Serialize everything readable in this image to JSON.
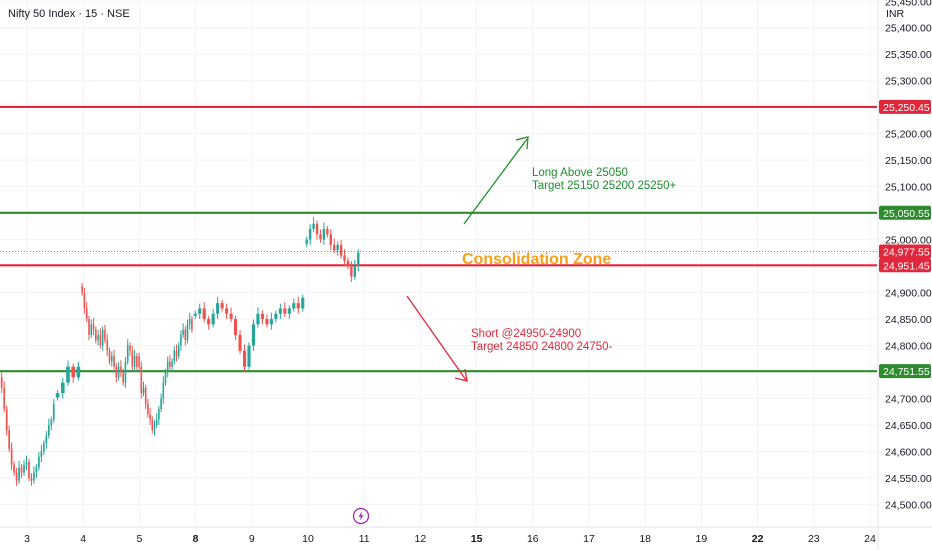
{
  "header": {
    "title": "Nifty 50 Index · 15 · NSE",
    "currency": "INR"
  },
  "chart_data": {
    "type": "candlestick",
    "ylim": [
      24480,
      25475
    ],
    "y_ticks": [
      {
        "value": 25450,
        "label": "25,450.00"
      },
      {
        "value": 25400,
        "label": "25,400.00"
      },
      {
        "value": 25350,
        "label": "25,350.00"
      },
      {
        "value": 25300,
        "label": "25,300.00"
      },
      {
        "value": 25200,
        "label": "25,200.00"
      },
      {
        "value": 25150,
        "label": "25,150.00"
      },
      {
        "value": 25100,
        "label": "25,100.00"
      },
      {
        "value": 25000,
        "label": "25,000.00"
      },
      {
        "value": 24900,
        "label": "24,900.00"
      },
      {
        "value": 24850,
        "label": "24,850.00"
      },
      {
        "value": 24800,
        "label": "24,800.00"
      },
      {
        "value": 24700,
        "label": "24,700.00"
      },
      {
        "value": 24650,
        "label": "24,650.00"
      },
      {
        "value": 24600,
        "label": "24,600.00"
      },
      {
        "value": 24550,
        "label": "24,550.00"
      },
      {
        "value": 24500,
        "label": "24,500.00"
      }
    ],
    "x_ticks": [
      {
        "label": "3",
        "bold": false
      },
      {
        "label": "4",
        "bold": false
      },
      {
        "label": "5",
        "bold": false
      },
      {
        "label": "8",
        "bold": true
      },
      {
        "label": "9",
        "bold": false
      },
      {
        "label": "10",
        "bold": false
      },
      {
        "label": "11",
        "bold": false
      },
      {
        "label": "12",
        "bold": false
      },
      {
        "label": "15",
        "bold": true
      },
      {
        "label": "16",
        "bold": false
      },
      {
        "label": "17",
        "bold": false
      },
      {
        "label": "18",
        "bold": false
      },
      {
        "label": "19",
        "bold": false
      },
      {
        "label": "22",
        "bold": true
      },
      {
        "label": "23",
        "bold": false
      },
      {
        "label": "24",
        "bold": false
      }
    ],
    "levels": [
      {
        "value": 25250.45,
        "label": "25,250.45",
        "color": "#e0283c"
      },
      {
        "value": 25050.55,
        "label": "25,050.55",
        "color": "#2e8b2e"
      },
      {
        "value": 24977.55,
        "label": "24,977.55",
        "color": "#e0283c",
        "kind": "current"
      },
      {
        "value": 24951.45,
        "label": "24,951.45",
        "color": "#e0283c"
      },
      {
        "value": 24751.55,
        "label": "24,751.55",
        "color": "#2e8b2e"
      }
    ],
    "annotations": {
      "long_line1": "Long Above 25050",
      "long_line2": "Target 25150 25200 25250+",
      "short_line1": "Short @24950-24900",
      "short_line2": "Target 24850 24800 24750-",
      "zone": "Consolidation Zone"
    },
    "colors": {
      "up": "#26a69a",
      "down": "#ef5350",
      "green_line": "#2e8b2e",
      "red_line": "#e0283c",
      "zone": "#f5a21a"
    },
    "series": [
      {
        "day": "2",
        "closes": [
          24740,
          24720,
          24680,
          24640,
          24605,
          24575,
          24560,
          24545,
          24570,
          24560,
          24575,
          24580,
          24550,
          24545,
          24560,
          24570,
          24590,
          24600,
          24615,
          24630,
          24650,
          24660,
          24690
        ]
      },
      {
        "day": "3",
        "closes": [
          24710,
          24730,
          24760,
          24740,
          24760
        ]
      },
      {
        "day": "4",
        "closes": [
          24900,
          24870,
          24850,
          24820,
          24840,
          24830,
          24810,
          24820,
          24800,
          24830,
          24810,
          24790,
          24770,
          24780,
          24760,
          24740,
          24760,
          24750,
          24730,
          24770,
          24800,
          24790,
          24760,
          24780,
          24760
        ]
      },
      {
        "day": "5",
        "closes": [
          24760,
          24710,
          24720,
          24690,
          24670,
          24660,
          24640,
          24650,
          24660,
          24680,
          24700,
          24730,
          24750,
          24770,
          24760,
          24770,
          24790,
          24780,
          24800,
          24820,
          24830,
          24810,
          24840,
          24850,
          24830
        ]
      },
      {
        "day": "8",
        "closes": [
          24860,
          24870,
          24850,
          24840,
          24860,
          24880,
          24870,
          24860,
          24850,
          24820,
          24790,
          24760,
          24800,
          24840,
          24860,
          24850,
          24840,
          24850,
          24860,
          24870,
          24860,
          24870,
          24880,
          24870,
          24890
        ]
      },
      {
        "day": "10",
        "closes": [
          25000,
          25020,
          25030,
          25010,
          25000,
          25020,
          25010,
          24990,
          24980,
          24990,
          24970,
          24960,
          24950,
          24930,
          24950,
          24975
        ]
      }
    ]
  }
}
